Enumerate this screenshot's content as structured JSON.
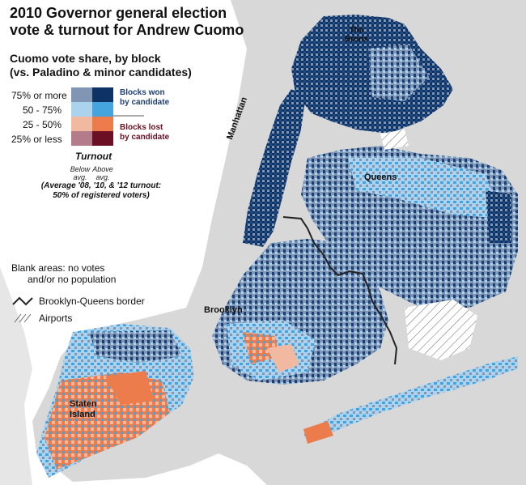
{
  "title": {
    "line1": "2010 Governor general election",
    "line2": "vote & turnout for Andrew Cuomo"
  },
  "subtitle": {
    "line1": "Cuomo vote share, by block",
    "line2": "(vs. Paladino & minor candidates)"
  },
  "legend": {
    "rows": [
      {
        "label": "75% or more",
        "below": "#8196b4",
        "above": "#0d3264"
      },
      {
        "label": "50 - 75%",
        "below": "#acd3ee",
        "above": "#45a4de"
      },
      {
        "label": "25 - 50%",
        "below": "#f1b9a0",
        "above": "#ec7c4c"
      },
      {
        "label": "25% or less",
        "below": "#b47b8a",
        "above": "#6b0f24"
      }
    ],
    "won": {
      "line1": "Blocks won",
      "line2": "by candidate",
      "color": "#1d3f73"
    },
    "lost": {
      "line1": "Blocks lost",
      "line2": "by candidate",
      "color": "#6b0f24"
    },
    "turnout_title": "Turnout",
    "below_line1": "Below",
    "below_line2": "avg.",
    "above_line1": "Above",
    "above_line2": "avg.",
    "turnout_note_line1": "(Average '08, '10, & '12 turnout:",
    "turnout_note_line2": "50% of registered voters)",
    "blank_line1": "Blank areas: no votes",
    "blank_line2": "and/or no population",
    "border_label": "Brooklyn-Queens border",
    "airports_label": "Airports"
  },
  "places": {
    "bronx_line1": "The",
    "bronx_line2": "Bronx",
    "manhattan": "Manhattan",
    "queens": "Queens",
    "brooklyn": "Brooklyn",
    "staten_line1": "Staten",
    "staten_line2": "Island"
  },
  "colors": {
    "background": "#ffffff",
    "land": "#d8d8d8",
    "water": "#ffffff",
    "border": "#222222"
  }
}
